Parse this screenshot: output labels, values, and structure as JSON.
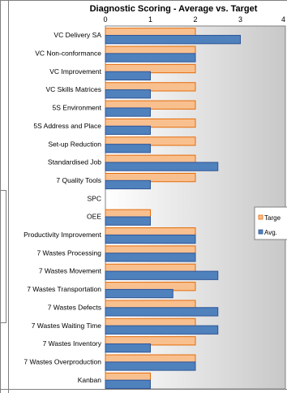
{
  "chart_data": {
    "type": "bar",
    "orientation": "horizontal",
    "title": "Diagnostic Scoring - Average vs. Target",
    "xlabel": "",
    "ylabel": "",
    "xlim": [
      0,
      4
    ],
    "x_ticks": [
      "0",
      "1",
      "2",
      "3",
      "4"
    ],
    "grid": false,
    "legend_position": "right",
    "categories": [
      "VC Delivery SA",
      "VC Non-conformance",
      "VC Improvement",
      "VC Skills Matrices",
      "5S Environment",
      "5S Address and Place",
      "Set-up Reduction",
      "Standardised Job",
      "7 Quality Tools",
      "SPC",
      "OEE",
      "Productivity Improvement",
      "7 Wastes Processing",
      "7 Wastes Movement",
      "7 Wastes Transportation",
      "7 Wastes  Defects",
      "7 Wastes Waiting Time",
      "7 Wastes Inventory",
      "7 Wastes Overproduction",
      "Kanban"
    ],
    "series": [
      {
        "name": "Targe",
        "color": "#f9c08f",
        "border": "#e46c0a",
        "values": [
          2,
          2,
          2,
          2,
          2,
          2,
          2,
          2,
          2,
          0,
          1,
          2,
          2,
          2,
          2,
          2,
          2,
          2,
          2,
          1
        ]
      },
      {
        "name": "Avg.",
        "color": "#4f81bd",
        "border": "#2f5597",
        "values": [
          3,
          2,
          1,
          1,
          1,
          1,
          1,
          2.5,
          1,
          0,
          1,
          2,
          2,
          2.5,
          1.5,
          2.5,
          2.5,
          1,
          2,
          1
        ]
      }
    ]
  }
}
